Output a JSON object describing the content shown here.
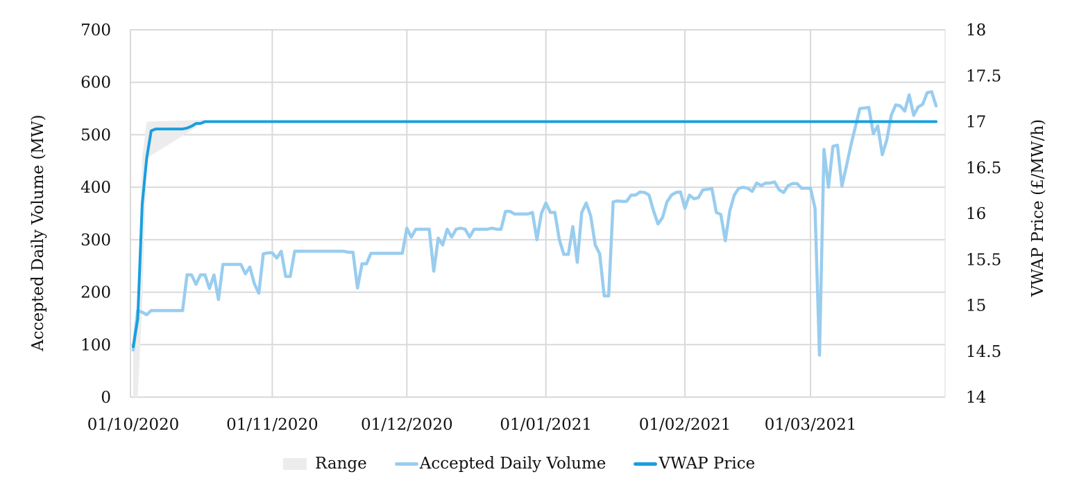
{
  "chart_data": {
    "type": "line",
    "title": "",
    "xlabel": "",
    "ylabel": "Accepted Daily Volume (MW)",
    "y2label": "VWAP Price (£/MW/h)",
    "ylim": [
      0,
      700
    ],
    "y2lim": [
      14,
      18
    ],
    "yticks": [
      "0",
      "100",
      "200",
      "300",
      "400",
      "500",
      "600",
      "700"
    ],
    "y2ticks": [
      "14",
      "14.5",
      "15",
      "15.5",
      "16",
      "16.5",
      "17",
      "17.5",
      "18"
    ],
    "xticks": [
      "01/10/2020",
      "01/11/2020",
      "01/12/2020",
      "01/01/2021",
      "01/02/2021",
      "01/03/2021"
    ],
    "x_range": [
      "01/10/2020",
      "31/03/2021"
    ],
    "grid": true,
    "legend_position": "bottom",
    "legend": [
      "Range",
      "Accepted Daily Volume",
      "VWAP Price"
    ],
    "colors": {
      "range": "#ececec",
      "volume": "#99cdef",
      "vwap": "#1a9fde",
      "grid": "#d9d9d9"
    },
    "series": [
      {
        "name": "Accepted Daily Volume",
        "axis": "left",
        "points": [
          [
            1,
            90
          ],
          [
            2,
            165
          ],
          [
            3,
            162
          ],
          [
            4,
            157
          ],
          [
            5,
            165
          ],
          [
            6,
            165
          ],
          [
            7,
            165
          ],
          [
            8,
            165
          ],
          [
            9,
            165
          ],
          [
            10,
            165
          ],
          [
            11,
            165
          ],
          [
            12,
            165
          ],
          [
            13,
            233
          ],
          [
            14,
            233
          ],
          [
            15,
            215
          ],
          [
            16,
            233
          ],
          [
            17,
            233
          ],
          [
            18,
            207
          ],
          [
            19,
            233
          ],
          [
            20,
            186
          ],
          [
            21,
            253
          ],
          [
            22,
            253
          ],
          [
            23,
            253
          ],
          [
            24,
            253
          ],
          [
            25,
            253
          ],
          [
            26,
            235
          ],
          [
            27,
            248
          ],
          [
            28,
            216
          ],
          [
            29,
            198
          ],
          [
            30,
            273
          ],
          [
            31,
            275
          ],
          [
            32,
            275
          ],
          [
            33,
            265
          ],
          [
            34,
            278
          ],
          [
            35,
            230
          ],
          [
            36,
            230
          ],
          [
            37,
            278
          ],
          [
            38,
            278
          ],
          [
            39,
            278
          ],
          [
            40,
            278
          ],
          [
            41,
            278
          ],
          [
            42,
            278
          ],
          [
            43,
            278
          ],
          [
            44,
            278
          ],
          [
            45,
            278
          ],
          [
            46,
            278
          ],
          [
            47,
            278
          ],
          [
            48,
            278
          ],
          [
            49,
            276
          ],
          [
            50,
            276
          ],
          [
            51,
            208
          ],
          [
            52,
            254
          ],
          [
            53,
            254
          ],
          [
            54,
            274
          ],
          [
            55,
            274
          ],
          [
            56,
            274
          ],
          [
            57,
            274
          ],
          [
            58,
            274
          ],
          [
            59,
            274
          ],
          [
            60,
            274
          ],
          [
            61,
            274
          ],
          [
            62,
            322
          ],
          [
            63,
            305
          ],
          [
            64,
            320
          ],
          [
            65,
            320
          ],
          [
            66,
            320
          ],
          [
            67,
            320
          ],
          [
            68,
            240
          ],
          [
            69,
            303
          ],
          [
            70,
            290
          ],
          [
            71,
            320
          ],
          [
            72,
            305
          ],
          [
            73,
            320
          ],
          [
            74,
            322
          ],
          [
            75,
            320
          ],
          [
            76,
            305
          ],
          [
            77,
            320
          ],
          [
            78,
            320
          ],
          [
            79,
            320
          ],
          [
            80,
            320
          ],
          [
            81,
            322
          ],
          [
            82,
            320
          ],
          [
            83,
            320
          ],
          [
            84,
            354
          ],
          [
            85,
            354
          ],
          [
            86,
            349
          ],
          [
            87,
            349
          ],
          [
            88,
            349
          ],
          [
            89,
            349
          ],
          [
            90,
            352
          ],
          [
            91,
            300
          ],
          [
            92,
            350
          ],
          [
            93,
            370
          ],
          [
            94,
            352
          ],
          [
            95,
            352
          ],
          [
            96,
            300
          ],
          [
            97,
            272
          ],
          [
            98,
            272
          ],
          [
            99,
            325
          ],
          [
            100,
            257
          ],
          [
            101,
            352
          ],
          [
            102,
            370
          ],
          [
            103,
            345
          ],
          [
            104,
            290
          ],
          [
            105,
            273
          ],
          [
            106,
            193
          ],
          [
            107,
            193
          ],
          [
            108,
            372
          ],
          [
            109,
            374
          ],
          [
            110,
            373
          ],
          [
            111,
            373
          ],
          [
            112,
            385
          ],
          [
            113,
            385
          ],
          [
            114,
            391
          ],
          [
            115,
            390
          ],
          [
            116,
            385
          ],
          [
            117,
            355
          ],
          [
            118,
            330
          ],
          [
            119,
            342
          ],
          [
            120,
            372
          ],
          [
            121,
            385
          ],
          [
            122,
            390
          ],
          [
            123,
            391
          ],
          [
            124,
            360
          ],
          [
            125,
            385
          ],
          [
            126,
            378
          ],
          [
            127,
            380
          ],
          [
            128,
            395
          ],
          [
            129,
            396
          ],
          [
            130,
            398
          ],
          [
            131,
            352
          ],
          [
            132,
            348
          ],
          [
            133,
            298
          ],
          [
            134,
            355
          ],
          [
            135,
            385
          ],
          [
            136,
            398
          ],
          [
            137,
            400
          ],
          [
            138,
            398
          ],
          [
            139,
            392
          ],
          [
            140,
            408
          ],
          [
            141,
            403
          ],
          [
            142,
            408
          ],
          [
            143,
            408
          ],
          [
            144,
            410
          ],
          [
            145,
            395
          ],
          [
            146,
            390
          ],
          [
            147,
            403
          ],
          [
            148,
            407
          ],
          [
            149,
            407
          ],
          [
            150,
            398
          ],
          [
            151,
            398
          ],
          [
            152,
            398
          ],
          [
            153,
            360
          ],
          [
            154,
            80
          ],
          [
            155,
            472
          ],
          [
            156,
            400
          ],
          [
            157,
            478
          ],
          [
            158,
            480
          ],
          [
            159,
            402
          ],
          [
            160,
            440
          ],
          [
            161,
            480
          ],
          [
            162,
            515
          ],
          [
            163,
            550
          ],
          [
            164,
            551
          ],
          [
            165,
            552
          ],
          [
            166,
            502
          ],
          [
            167,
            517
          ],
          [
            168,
            462
          ],
          [
            169,
            490
          ],
          [
            170,
            537
          ],
          [
            171,
            557
          ],
          [
            172,
            555
          ],
          [
            173,
            545
          ],
          [
            174,
            576
          ],
          [
            175,
            537
          ],
          [
            176,
            553
          ],
          [
            177,
            558
          ],
          [
            178,
            580
          ],
          [
            179,
            582
          ],
          [
            180,
            555
          ]
        ]
      },
      {
        "name": "VWAP Price",
        "axis": "right",
        "points": [
          [
            1,
            14.55
          ],
          [
            2,
            14.85
          ],
          [
            3,
            16.1
          ],
          [
            4,
            16.6
          ],
          [
            5,
            16.9
          ],
          [
            6,
            16.92
          ],
          [
            7,
            16.92
          ],
          [
            8,
            16.92
          ],
          [
            9,
            16.92
          ],
          [
            10,
            16.92
          ],
          [
            11,
            16.92
          ],
          [
            12,
            16.92
          ],
          [
            13,
            16.93
          ],
          [
            14,
            16.95
          ],
          [
            15,
            16.98
          ],
          [
            16,
            16.98
          ],
          [
            17,
            17.0
          ],
          [
            18,
            17.0
          ],
          [
            180,
            17.0
          ]
        ]
      },
      {
        "name": "Range",
        "axis": "right",
        "type": "area",
        "description": "Grey min-max band around VWAP price; visible mainly during first ~17 days",
        "points": [
          [
            1,
            14.0,
            14.55
          ],
          [
            2,
            14.0,
            14.95
          ],
          [
            3,
            15.0,
            16.6
          ],
          [
            4,
            16.6,
            17.0
          ],
          [
            17,
            17.0,
            17.02
          ],
          [
            18,
            17.0,
            17.0
          ]
        ]
      }
    ]
  },
  "legend": {
    "range_label": "Range",
    "volume_label": "Accepted Daily Volume",
    "vwap_label": "VWAP Price"
  },
  "axes": {
    "left_title": "Accepted Daily Volume (MW)",
    "right_title": "VWAP Price (£/MW/h)"
  }
}
